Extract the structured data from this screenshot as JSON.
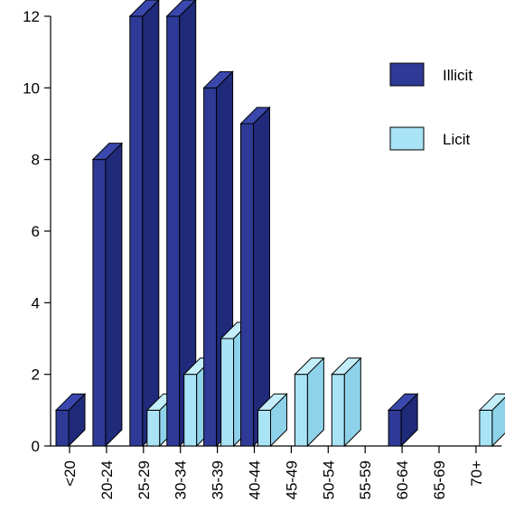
{
  "chart_data": {
    "type": "bar",
    "categories": [
      "<20",
      "20-24",
      "25-29",
      "30-34",
      "35-39",
      "40-44",
      "45-49",
      "50-54",
      "55-59",
      "60-64",
      "65-69",
      "70+"
    ],
    "series": [
      {
        "name": "Illicit",
        "values": [
          1,
          8,
          12,
          12,
          10,
          9,
          0,
          0,
          0,
          1,
          0,
          0
        ]
      },
      {
        "name": "Licit",
        "values": [
          0,
          0,
          1,
          2,
          3,
          1,
          2,
          2,
          0,
          0,
          0,
          1
        ]
      }
    ],
    "ylim": [
      0,
      12
    ],
    "yticks": [
      0,
      2,
      4,
      6,
      8,
      10,
      12
    ],
    "grid": false,
    "legend_position": "top-right",
    "style": "3d-bars",
    "colors": {
      "Illicit": {
        "front": "#2e3a96",
        "side": "#1f2a7a",
        "top": "#3a48ad"
      },
      "Licit": {
        "front": "#a8e4f5",
        "side": "#8ed2ea",
        "top": "#c4eefa"
      },
      "axis": "#000000",
      "outline": "#000000"
    }
  }
}
